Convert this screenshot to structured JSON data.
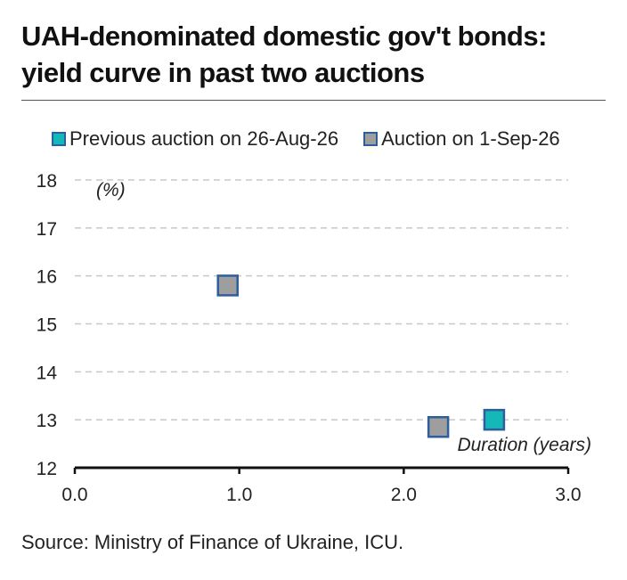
{
  "title_line1": "UAH-denominated domestic gov't bonds:",
  "title_line2": "yield curve in past two auctions",
  "source": "Source: Ministry of Finance of Ukraine, ICU.",
  "colors": {
    "previous": "#14b8b8",
    "current": "#9e9e9e",
    "marker_border": "#2e5e9c",
    "grid": "#c8c8c8"
  },
  "chart_data": {
    "type": "scatter",
    "title": "UAH-denominated domestic gov't bonds: yield curve in past two auctions",
    "xlabel": "Duration (years)",
    "ylabel": "(%)",
    "xlim": [
      0,
      3
    ],
    "ylim": [
      12,
      18
    ],
    "x_ticks": [
      "0.0",
      "1.0",
      "2.0",
      "3.0"
    ],
    "y_ticks": [
      "12",
      "13",
      "14",
      "15",
      "16",
      "17",
      "18"
    ],
    "grid": "horizontal dashed",
    "legend_position": "top",
    "series": [
      {
        "name": "Previous auction on 26-Aug-26",
        "color": "#14b8b8",
        "points": [
          {
            "x": 2.55,
            "y": 13.0
          }
        ]
      },
      {
        "name": "Auction on 1-Sep-26",
        "color": "#9e9e9e",
        "points": [
          {
            "x": 0.93,
            "y": 15.8
          },
          {
            "x": 2.21,
            "y": 12.85
          }
        ]
      }
    ]
  }
}
